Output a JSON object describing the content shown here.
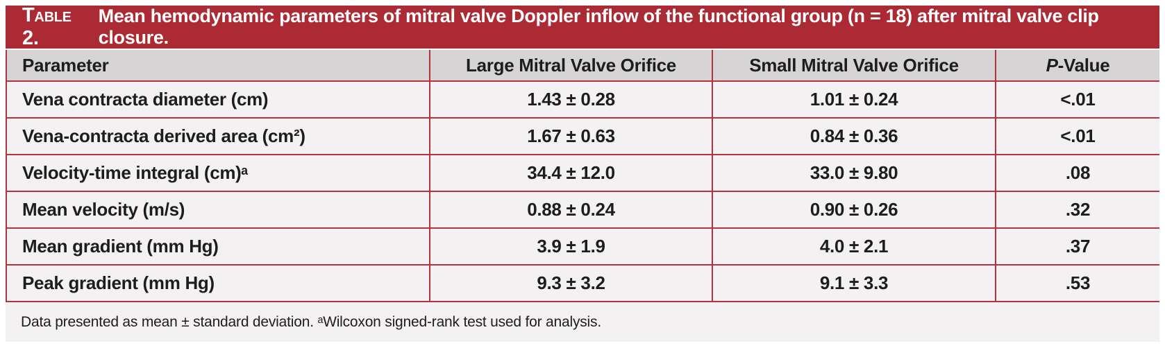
{
  "title": {
    "label": "Table 2.",
    "text": "Mean hemodynamic parameters of mitral valve Doppler inflow of the functional group (n = 18) after mitral valve clip closure."
  },
  "table": {
    "headers": {
      "parameter": "Parameter",
      "large": "Large Mitral Valve Orifice",
      "small": "Small Mitral Valve Orifice",
      "p_italic": "P",
      "p_rest": "-Value"
    },
    "rows": [
      {
        "param": "Vena contracta diameter (cm)",
        "large": "1.43 ± 0.28",
        "small": "1.01 ± 0.24",
        "p": "<.01"
      },
      {
        "param": "Vena-contracta derived area (cm²)",
        "large": "1.67 ± 0.63",
        "small": "0.84 ± 0.36",
        "p": "<.01"
      },
      {
        "param": "Velocity-time integral (cm)ᵃ",
        "large": "34.4 ± 12.0",
        "small": "33.0 ± 9.80",
        "p": ".08"
      },
      {
        "param": "Mean velocity (m/s)",
        "large": "0.88 ± 0.24",
        "small": "0.90 ± 0.26",
        "p": ".32"
      },
      {
        "param": "Mean gradient (mm Hg)",
        "large": "3.9 ± 1.9",
        "small": "4.0 ± 2.1",
        "p": ".37"
      },
      {
        "param": "Peak gradient (mm Hg)",
        "large": "9.3 ± 3.2",
        "small": "9.1 ± 3.3",
        "p": ".53"
      }
    ]
  },
  "footnote": "Data presented as mean ± standard deviation. ᵃWilcoxon signed-rank test used for analysis.",
  "colors": {
    "title_bar": "#AB2A33",
    "rule_red": "#B4323B",
    "header_bg": "#D7D4D5",
    "row_bg": "#F3F1F1",
    "title_text": "#FFFFFF",
    "body_text": "#1D1D1B"
  }
}
